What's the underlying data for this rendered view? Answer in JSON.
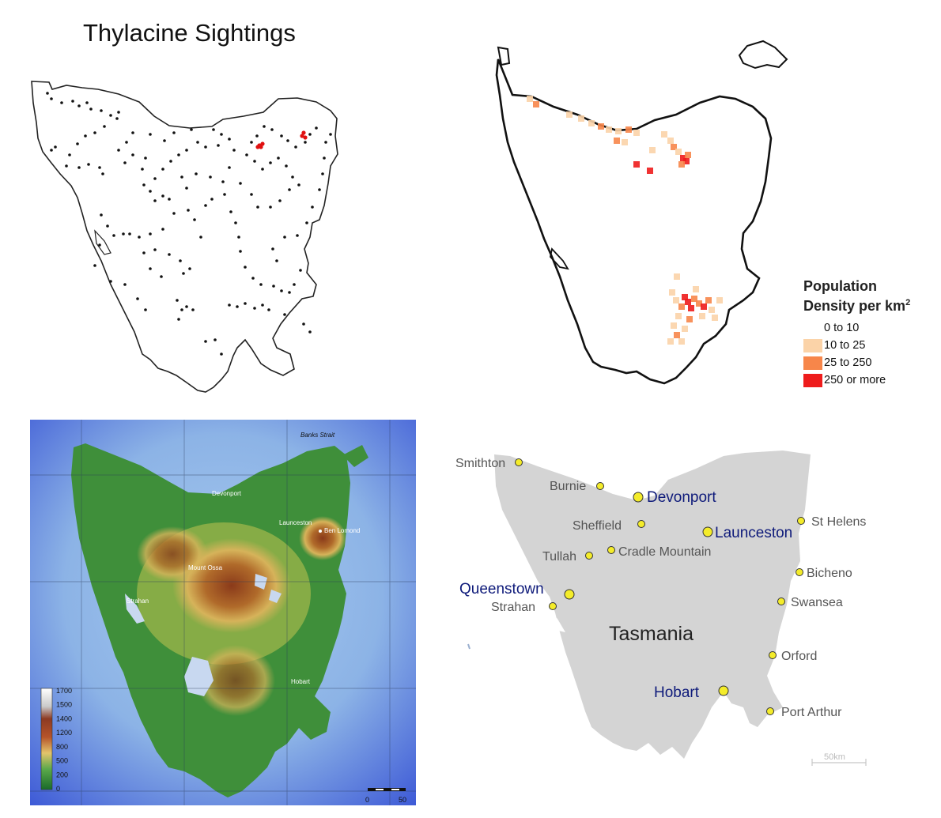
{
  "sightings": {
    "title": "Thylacine Sightings",
    "dot_color": "#111111",
    "highlight_color": "#e01010"
  },
  "population": {
    "legend_title_line1": "Population",
    "legend_title_line2": "Density per km",
    "legend_sup": "2",
    "classes": [
      {
        "label": "0 to 10",
        "color": "#ffffff"
      },
      {
        "label": "10 to 25",
        "color": "#fbd3a8"
      },
      {
        "label": "25 to 250",
        "color": "#f7864a"
      },
      {
        "label": "250 or more",
        "color": "#ee1c1c"
      }
    ]
  },
  "topo": {
    "labels": {
      "banks_strait": "Banks Strait",
      "devonport": "Devonport",
      "launceston": "Launceston",
      "ben_lomond": "Ben Lomond",
      "mount_ossa": "Mount Ossa",
      "strahan": "Strahan",
      "hobart": "Hobart"
    },
    "elevation_ticks": [
      "1700",
      "1500",
      "1400",
      "1200",
      "800",
      "500",
      "200",
      "0"
    ],
    "scale_labels": [
      "0",
      "50"
    ]
  },
  "towns": {
    "title": "Tasmania",
    "scale_label": "50km",
    "major_color": "#0e1a7a",
    "minor_color": "#555555",
    "dot_color": "#f4ec2a",
    "land_color": "#d4d4d4",
    "places": [
      {
        "name": "Smithton",
        "major": false
      },
      {
        "name": "Burnie",
        "major": false
      },
      {
        "name": "Devonport",
        "major": true
      },
      {
        "name": "Sheffield",
        "major": false
      },
      {
        "name": "Launceston",
        "major": true
      },
      {
        "name": "St Helens",
        "major": false
      },
      {
        "name": "Tullah",
        "major": false
      },
      {
        "name": "Cradle Mountain",
        "major": false
      },
      {
        "name": "Bicheno",
        "major": false
      },
      {
        "name": "Queenstown",
        "major": true
      },
      {
        "name": "Strahan",
        "major": false
      },
      {
        "name": "Swansea",
        "major": false
      },
      {
        "name": "Orford",
        "major": false
      },
      {
        "name": "Hobart",
        "major": true
      },
      {
        "name": "Port Arthur",
        "major": false
      }
    ]
  }
}
